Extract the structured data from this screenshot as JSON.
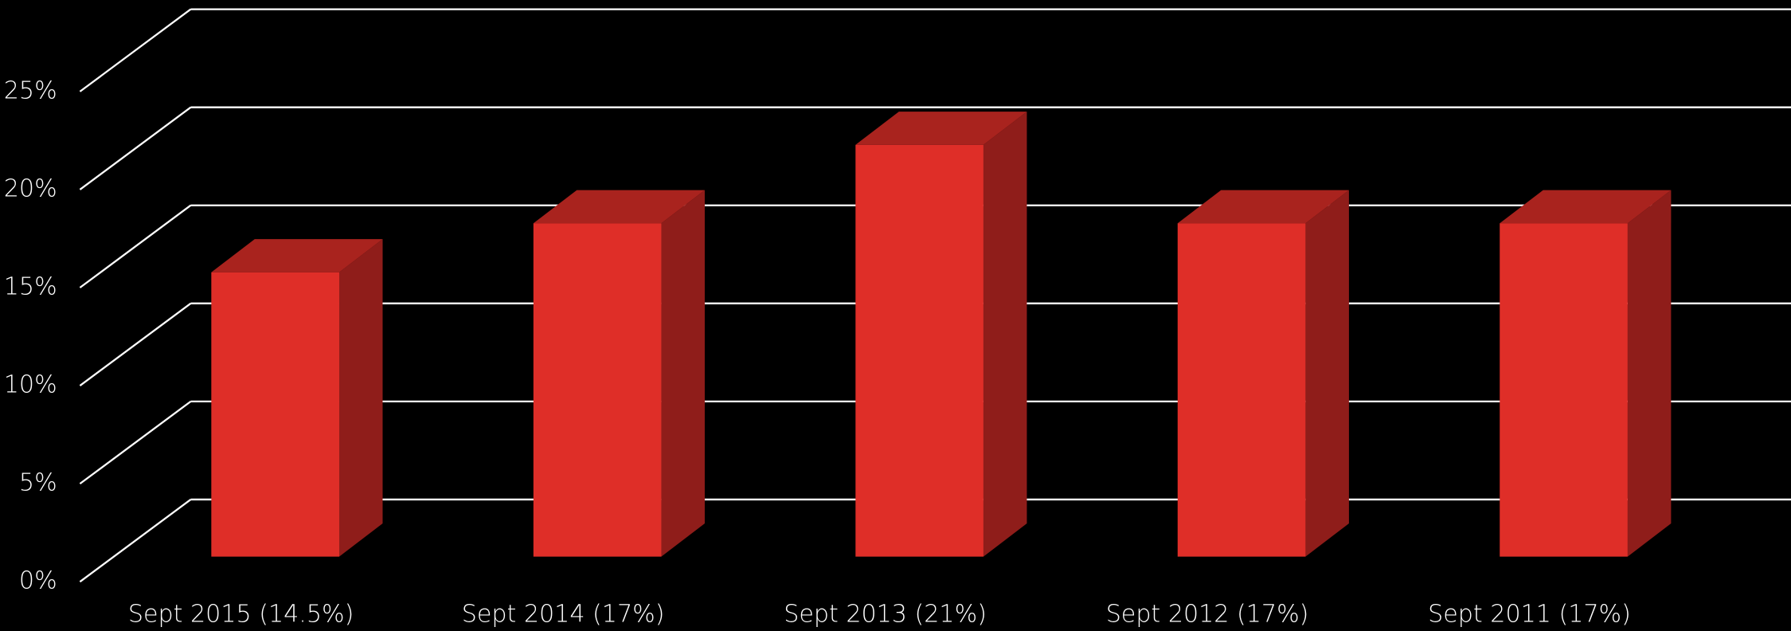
{
  "chart_data": {
    "type": "bar",
    "categories": [
      "Sept 2015 (14.5%)",
      "Sept 2014 (17%)",
      "Sept 2013 (21%)",
      "Sept 2012 (17%)",
      "Sept 2011 (17%)"
    ],
    "values": [
      14.5,
      17,
      21,
      17,
      17
    ],
    "color": "#df2e28",
    "ylim": [
      0,
      25
    ],
    "yticks": [
      {
        "value": 0,
        "label": "0%"
      },
      {
        "value": 5,
        "label": "5%"
      },
      {
        "value": 10,
        "label": "10%"
      },
      {
        "value": 15,
        "label": "15%"
      },
      {
        "value": 20,
        "label": "20%"
      },
      {
        "value": 25,
        "label": "25%"
      }
    ],
    "grid": true
  }
}
